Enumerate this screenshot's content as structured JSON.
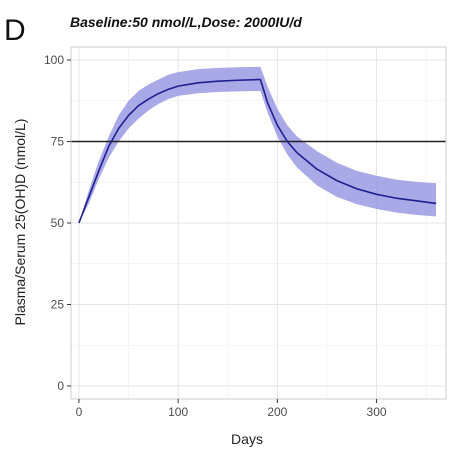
{
  "panel_label": "D",
  "chart_data": {
    "type": "line",
    "title": "Baseline:50 nmol/L,Dose: 2000IU/d",
    "xlabel": "Days",
    "ylabel": "Plasma/Serum 25(OH)D (nmol/L)",
    "xlim": [
      -8,
      370
    ],
    "ylim": [
      -4,
      104
    ],
    "x_ticks": [
      0,
      100,
      200,
      300
    ],
    "y_ticks": [
      0,
      25,
      50,
      75,
      100
    ],
    "grid": true,
    "threshold": {
      "y": 75,
      "color": "#222222"
    },
    "colors": {
      "line": "#1f1f8f",
      "band": "#8c8ce0",
      "grid": "#e5e5e5",
      "panel_border": "#cccccc"
    },
    "series": [
      {
        "x": [
          0,
          10,
          20,
          30,
          40,
          50,
          60,
          70,
          80,
          90,
          100,
          120,
          140,
          160,
          180,
          183,
          190,
          200,
          210,
          220,
          240,
          260,
          280,
          300,
          320,
          340,
          360
        ],
        "y": [
          50,
          58,
          66,
          73.5,
          79,
          83,
          86,
          88,
          89.7,
          91,
          92,
          93,
          93.5,
          93.8,
          94,
          94,
          87,
          80,
          75,
          71.5,
          66.5,
          63,
          60.5,
          58.8,
          57.6,
          56.8,
          56
        ],
        "lower": [
          50,
          56,
          63.5,
          70,
          75,
          79,
          82,
          84.5,
          86.5,
          88,
          89,
          89.8,
          90.2,
          90.4,
          90.5,
          90.5,
          84,
          76.5,
          71,
          67,
          61.5,
          58,
          55.8,
          54.3,
          53.2,
          52.5,
          52
        ],
        "upper": [
          50,
          60,
          69,
          76.5,
          83,
          87.5,
          90.5,
          92.5,
          94,
          95.5,
          96.3,
          97.2,
          97.6,
          97.8,
          97.9,
          97.9,
          92,
          85,
          80,
          76.5,
          72,
          68.5,
          66,
          64.5,
          63.3,
          62.6,
          62.2
        ]
      }
    ]
  }
}
